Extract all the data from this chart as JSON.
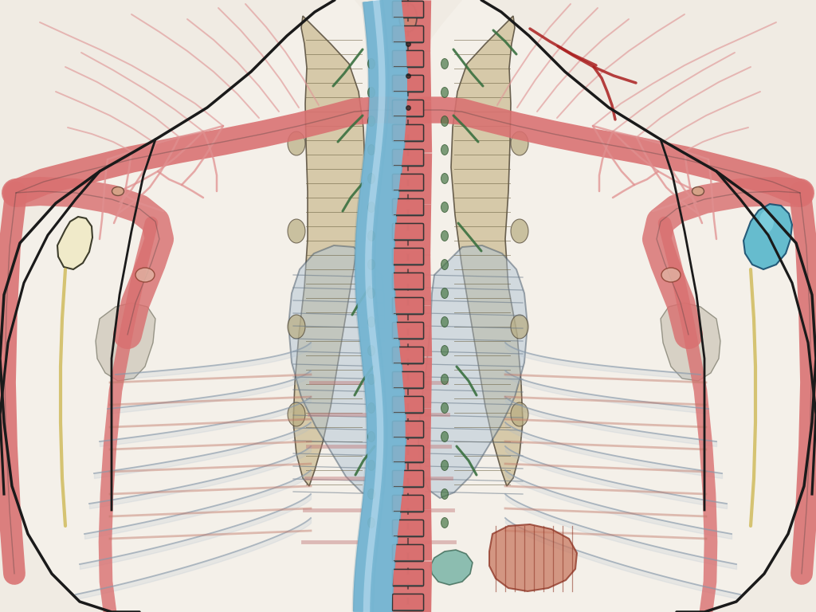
{
  "bg_color": "#f0ebe3",
  "body_outline_color": "#1a1a1a",
  "spine_red": "#d97070",
  "spine_seg_color": "#333333",
  "aorta_color": "#d97070",
  "vena_cava_color": "#7ab8d4",
  "nerve_color": "#d97070",
  "nerve_light": "#eeaa99",
  "nerve_thin": "#c06060",
  "nerve_outline": "#222222",
  "lung_color": "#b8c8d8",
  "lung_fill": "#c8d8e0",
  "spinal_cord_color": "#c8ba90",
  "ganglion_cream": "#f0eacc",
  "ganglion_blue": "#5ab8d0",
  "green_nerve": "#3a7040",
  "dark_red_nerve": "#b03030",
  "muscle_red": "#c07060",
  "small_nerve_color": "#e08888",
  "figsize": [
    10.24,
    7.68
  ],
  "dpi": 100,
  "nerve_net_color": "#e09090",
  "nerve_net_lw": 1.5,
  "rib_color": "#c0c8d0",
  "shoulder_fill": "#e0c8b8"
}
